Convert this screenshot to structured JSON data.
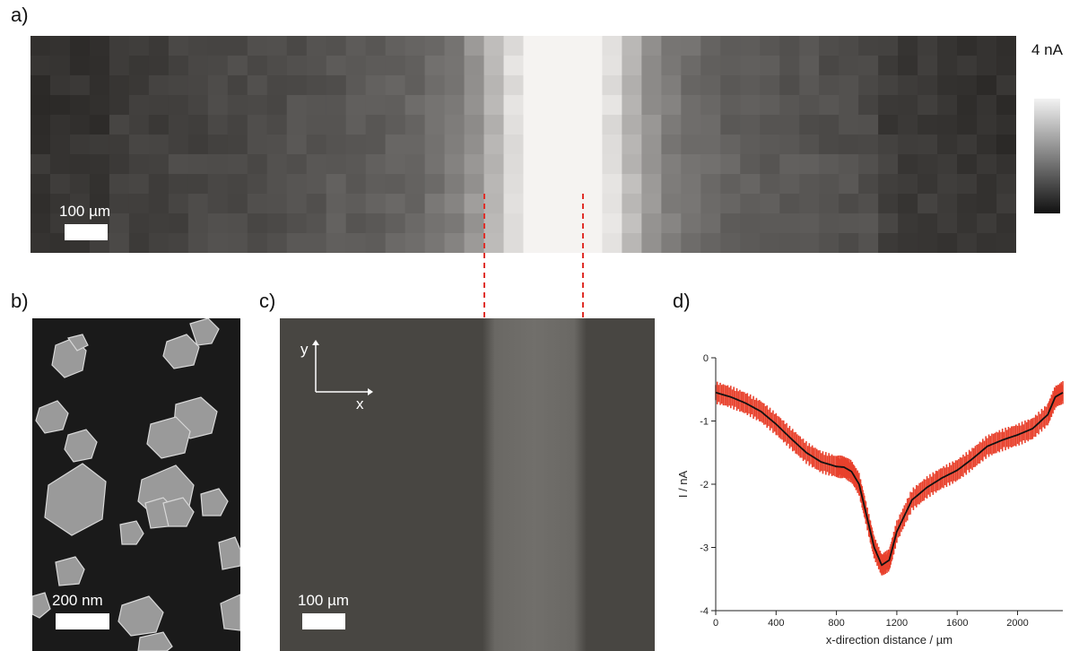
{
  "panels": {
    "a": {
      "label": "a)",
      "scalebar": "100 µm",
      "colorbar_max": "4 nA"
    },
    "b": {
      "label": "b)",
      "scalebar": "200 nm"
    },
    "c": {
      "label": "c)",
      "scalebar": "100 µm",
      "axis_y": "y",
      "axis_x": "x"
    },
    "d": {
      "label": "d)"
    }
  },
  "chart_data": {
    "type": "line",
    "xlabel": "x-direction distance / µm",
    "ylabel": "I / nA",
    "xlim": [
      0,
      2300
    ],
    "ylim": [
      -4,
      0
    ],
    "xticks": [
      0,
      400,
      800,
      1200,
      1600,
      2000
    ],
    "yticks": [
      0,
      -1,
      -2,
      -3,
      -4
    ],
    "series": [
      {
        "x": [
          0,
          100,
          200,
          300,
          400,
          500,
          600,
          700,
          800,
          850,
          900,
          950,
          1000,
          1050,
          1100,
          1150,
          1200,
          1300,
          1400,
          1500,
          1600,
          1700,
          1800,
          1900,
          2000,
          2100,
          2200,
          2250,
          2300
        ],
        "y": [
          -0.55,
          -0.62,
          -0.72,
          -0.85,
          -1.05,
          -1.28,
          -1.5,
          -1.65,
          -1.72,
          -1.73,
          -1.8,
          -2.0,
          -2.5,
          -3.0,
          -3.28,
          -3.2,
          -2.75,
          -2.25,
          -2.05,
          -1.9,
          -1.78,
          -1.6,
          -1.4,
          -1.3,
          -1.22,
          -1.12,
          -0.9,
          -0.62,
          -0.55
        ],
        "error": 0.15,
        "line_color": "#111111",
        "band_color": "#e8412c"
      }
    ]
  }
}
